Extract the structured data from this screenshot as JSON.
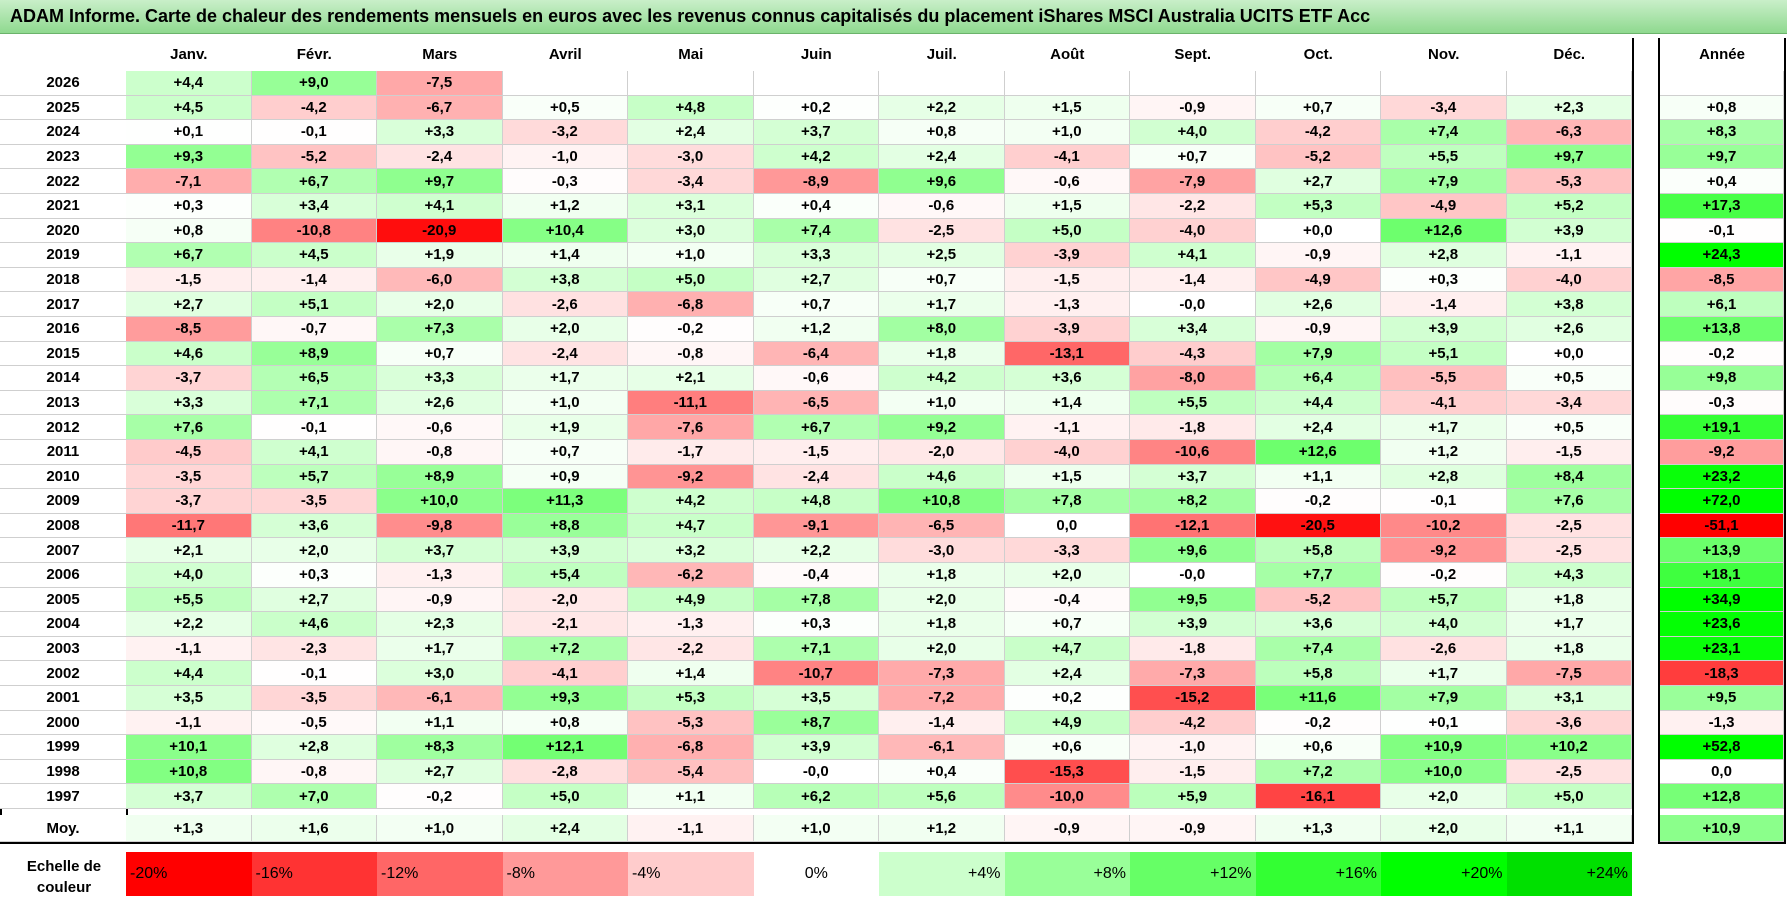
{
  "title": "ADAM Informe. Carte de chaleur des rendements mensuels en euros avec les revenus connus capitalisés du placement iShares MSCI Australia UCITS ETF Acc",
  "chart_data": {
    "type": "heatmap",
    "title": "ADAM Informe. Carte de chaleur des rendements mensuels en euros avec les revenus connus capitalisés du placement iShares MSCI Australia UCITS ETF Acc",
    "months": [
      "Janv.",
      "Févr.",
      "Mars",
      "Avril",
      "Mai",
      "Juin",
      "Juil.",
      "Août",
      "Sept.",
      "Oct.",
      "Nov.",
      "Déc."
    ],
    "year_header": "Année",
    "rows": [
      {
        "year": "2026",
        "values": [
          "+4,4",
          "+9,0",
          "-7,5",
          "",
          "",
          "",
          "",
          "",
          "",
          "",
          "",
          ""
        ],
        "annual": ""
      },
      {
        "year": "2025",
        "values": [
          "+4,5",
          "-4,2",
          "-6,7",
          "+0,5",
          "+4,8",
          "+0,2",
          "+2,2",
          "+1,5",
          "-0,9",
          "+0,7",
          "-3,4",
          "+2,3"
        ],
        "annual": "+0,8"
      },
      {
        "year": "2024",
        "values": [
          "+0,1",
          "-0,1",
          "+3,3",
          "-3,2",
          "+2,4",
          "+3,7",
          "+0,8",
          "+1,0",
          "+4,0",
          "-4,2",
          "+7,4",
          "-6,3"
        ],
        "annual": "+8,3"
      },
      {
        "year": "2023",
        "values": [
          "+9,3",
          "-5,2",
          "-2,4",
          "-1,0",
          "-3,0",
          "+4,2",
          "+2,4",
          "-4,1",
          "+0,7",
          "-5,2",
          "+5,5",
          "+9,7"
        ],
        "annual": "+9,7"
      },
      {
        "year": "2022",
        "values": [
          "-7,1",
          "+6,7",
          "+9,7",
          "-0,3",
          "-3,4",
          "-8,9",
          "+9,6",
          "-0,6",
          "-7,9",
          "+2,7",
          "+7,9",
          "-5,3"
        ],
        "annual": "+0,4"
      },
      {
        "year": "2021",
        "values": [
          "+0,3",
          "+3,4",
          "+4,1",
          "+1,2",
          "+3,1",
          "+0,4",
          "-0,6",
          "+1,5",
          "-2,2",
          "+5,3",
          "-4,9",
          "+5,2"
        ],
        "annual": "+17,3"
      },
      {
        "year": "2020",
        "values": [
          "+0,8",
          "-10,8",
          "-20,9",
          "+10,4",
          "+3,0",
          "+7,4",
          "-2,5",
          "+5,0",
          "-4,0",
          "+0,0",
          "+12,6",
          "+3,9"
        ],
        "annual": "-0,1"
      },
      {
        "year": "2019",
        "values": [
          "+6,7",
          "+4,5",
          "+1,9",
          "+1,4",
          "+1,0",
          "+3,3",
          "+2,5",
          "-3,9",
          "+4,1",
          "-0,9",
          "+2,8",
          "-1,1"
        ],
        "annual": "+24,3"
      },
      {
        "year": "2018",
        "values": [
          "-1,5",
          "-1,4",
          "-6,0",
          "+3,8",
          "+5,0",
          "+2,7",
          "+0,7",
          "-1,5",
          "-1,4",
          "-4,9",
          "+0,3",
          "-4,0"
        ],
        "annual": "-8,5"
      },
      {
        "year": "2017",
        "values": [
          "+2,7",
          "+5,1",
          "+2,0",
          "-2,6",
          "-6,8",
          "+0,7",
          "+1,7",
          "-1,3",
          "-0,0",
          "+2,6",
          "-1,4",
          "+3,8"
        ],
        "annual": "+6,1"
      },
      {
        "year": "2016",
        "values": [
          "-8,5",
          "-0,7",
          "+7,3",
          "+2,0",
          "-0,2",
          "+1,2",
          "+8,0",
          "-3,9",
          "+3,4",
          "-0,9",
          "+3,9",
          "+2,6"
        ],
        "annual": "+13,8"
      },
      {
        "year": "2015",
        "values": [
          "+4,6",
          "+8,9",
          "+0,7",
          "-2,4",
          "-0,8",
          "-6,4",
          "+1,8",
          "-13,1",
          "-4,3",
          "+7,9",
          "+5,1",
          "+0,0"
        ],
        "annual": "-0,2"
      },
      {
        "year": "2014",
        "values": [
          "-3,7",
          "+6,5",
          "+3,3",
          "+1,7",
          "+2,1",
          "-0,6",
          "+4,2",
          "+3,6",
          "-8,0",
          "+6,4",
          "-5,5",
          "+0,5"
        ],
        "annual": "+9,8"
      },
      {
        "year": "2013",
        "values": [
          "+3,3",
          "+7,1",
          "+2,6",
          "+1,0",
          "-11,1",
          "-6,5",
          "+1,0",
          "+1,4",
          "+5,5",
          "+4,4",
          "-4,1",
          "-3,4"
        ],
        "annual": "-0,3"
      },
      {
        "year": "2012",
        "values": [
          "+7,6",
          "-0,1",
          "-0,6",
          "+1,9",
          "-7,6",
          "+6,7",
          "+9,2",
          "-1,1",
          "-1,8",
          "+2,4",
          "+1,7",
          "+0,5"
        ],
        "annual": "+19,1"
      },
      {
        "year": "2011",
        "values": [
          "-4,5",
          "+4,1",
          "-0,8",
          "+0,7",
          "-1,7",
          "-1,5",
          "-2,0",
          "-4,0",
          "-10,6",
          "+12,6",
          "+1,2",
          "-1,5"
        ],
        "annual": "-9,2"
      },
      {
        "year": "2010",
        "values": [
          "-3,5",
          "+5,7",
          "+8,9",
          "+0,9",
          "-9,2",
          "-2,4",
          "+4,6",
          "+1,5",
          "+3,7",
          "+1,1",
          "+2,8",
          "+8,4"
        ],
        "annual": "+23,2"
      },
      {
        "year": "2009",
        "values": [
          "-3,7",
          "-3,5",
          "+10,0",
          "+11,3",
          "+4,2",
          "+4,8",
          "+10,8",
          "+7,8",
          "+8,2",
          "-0,2",
          "-0,1",
          "+7,6"
        ],
        "annual": "+72,0"
      },
      {
        "year": "2008",
        "values": [
          "-11,7",
          "+3,6",
          "-9,8",
          "+8,8",
          "+4,7",
          "-9,1",
          "-6,5",
          "0,0",
          "-12,1",
          "-20,5",
          "-10,2",
          "-2,5"
        ],
        "annual": "-51,1"
      },
      {
        "year": "2007",
        "values": [
          "+2,1",
          "+2,0",
          "+3,7",
          "+3,9",
          "+3,2",
          "+2,2",
          "-3,0",
          "-3,3",
          "+9,6",
          "+5,8",
          "-9,2",
          "-2,5"
        ],
        "annual": "+13,9"
      },
      {
        "year": "2006",
        "values": [
          "+4,0",
          "+0,3",
          "-1,3",
          "+5,4",
          "-6,2",
          "-0,4",
          "+1,8",
          "+2,0",
          "-0,0",
          "+7,7",
          "-0,2",
          "+4,3"
        ],
        "annual": "+18,1"
      },
      {
        "year": "2005",
        "values": [
          "+5,5",
          "+2,7",
          "-0,9",
          "-2,0",
          "+4,9",
          "+7,8",
          "+2,0",
          "-0,4",
          "+9,5",
          "-5,2",
          "+5,7",
          "+1,8"
        ],
        "annual": "+34,9"
      },
      {
        "year": "2004",
        "values": [
          "+2,2",
          "+4,6",
          "+2,3",
          "-2,1",
          "-1,3",
          "+0,3",
          "+1,8",
          "+0,7",
          "+3,9",
          "+3,6",
          "+4,0",
          "+1,7"
        ],
        "annual": "+23,6"
      },
      {
        "year": "2003",
        "values": [
          "-1,1",
          "-2,3",
          "+1,7",
          "+7,2",
          "-2,2",
          "+7,1",
          "+2,0",
          "+4,7",
          "-1,8",
          "+7,4",
          "-2,6",
          "+1,8"
        ],
        "annual": "+23,1"
      },
      {
        "year": "2002",
        "values": [
          "+4,4",
          "-0,1",
          "+3,0",
          "-4,1",
          "+1,4",
          "-10,7",
          "-7,3",
          "+2,4",
          "-7,3",
          "+5,8",
          "+1,7",
          "-7,5"
        ],
        "annual": "-18,3"
      },
      {
        "year": "2001",
        "values": [
          "+3,5",
          "-3,5",
          "-6,1",
          "+9,3",
          "+5,3",
          "+3,5",
          "-7,2",
          "+0,2",
          "-15,2",
          "+11,6",
          "+7,9",
          "+3,1"
        ],
        "annual": "+9,5"
      },
      {
        "year": "2000",
        "values": [
          "-1,1",
          "-0,5",
          "+1,1",
          "+0,8",
          "-5,3",
          "+8,7",
          "-1,4",
          "+4,9",
          "-4,2",
          "-0,2",
          "+0,1",
          "-3,6"
        ],
        "annual": "-1,3"
      },
      {
        "year": "1999",
        "values": [
          "+10,1",
          "+2,8",
          "+8,3",
          "+12,1",
          "-6,8",
          "+3,9",
          "-6,1",
          "+0,6",
          "-1,0",
          "+0,6",
          "+10,9",
          "+10,2"
        ],
        "annual": "+52,8"
      },
      {
        "year": "1998",
        "values": [
          "+10,8",
          "-0,8",
          "+2,7",
          "-2,8",
          "-5,4",
          "-0,0",
          "+0,4",
          "-15,3",
          "-1,5",
          "+7,2",
          "+10,0",
          "-2,5"
        ],
        "annual": "0,0"
      },
      {
        "year": "1997",
        "values": [
          "+3,7",
          "+7,0",
          "-0,2",
          "+5,0",
          "+1,1",
          "+6,2",
          "+5,6",
          "-10,0",
          "+5,9",
          "-16,1",
          "+2,0",
          "+5,0"
        ],
        "annual": "+12,8"
      }
    ],
    "average": {
      "label": "Moy.",
      "values": [
        "+1,3",
        "+1,6",
        "+1,0",
        "+2,4",
        "-1,1",
        "+1,0",
        "+1,2",
        "-0,9",
        "-0,9",
        "+1,3",
        "+2,0",
        "+1,1"
      ],
      "annual": "+10,9"
    },
    "scale": {
      "label_line1": "Echelle de",
      "label_line2": "couleur",
      "items": [
        {
          "label": "-20%",
          "value": -20,
          "color": "#ff0000"
        },
        {
          "label": "-16%",
          "value": -16,
          "color": "#ff3333"
        },
        {
          "label": "-12%",
          "value": -12,
          "color": "#ff6666"
        },
        {
          "label": "-8%",
          "value": -8,
          "color": "#ff9999"
        },
        {
          "label": "-4%",
          "value": -4,
          "color": "#ffcccc"
        },
        {
          "label": "0%",
          "value": 0,
          "color": "#ffffff"
        },
        {
          "label": "+4%",
          "value": 4,
          "color": "#ccffcc"
        },
        {
          "label": "+8%",
          "value": 8,
          "color": "#99ff99"
        },
        {
          "label": "+12%",
          "value": 12,
          "color": "#66ff66"
        },
        {
          "label": "+16%",
          "value": 16,
          "color": "#33ff33"
        },
        {
          "label": "+20%",
          "value": 20,
          "color": "#00ff00"
        },
        {
          "label": "+24%",
          "value": 24,
          "color": "#00e000"
        }
      ]
    }
  }
}
